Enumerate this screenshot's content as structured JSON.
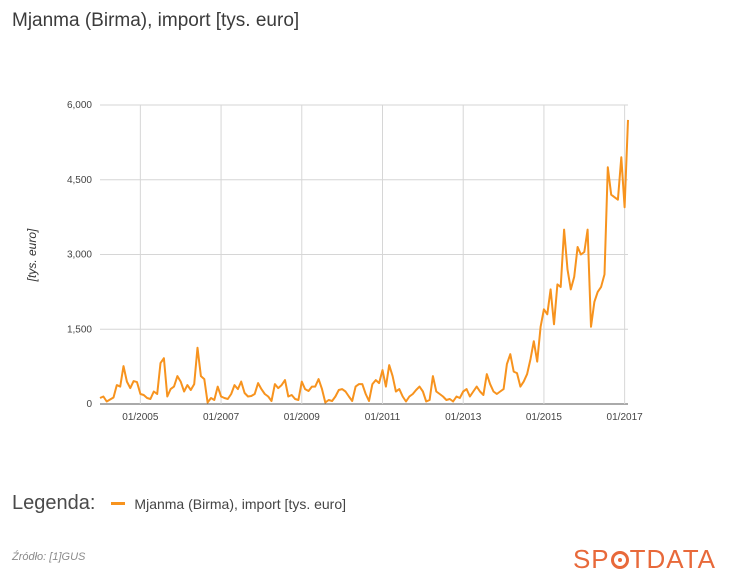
{
  "chart_data": {
    "type": "line",
    "title": "Mjanma (Birma), import [tys. euro]",
    "ylabel": "[tys. euro]",
    "ylim": [
      0,
      6000
    ],
    "yticks": [
      0,
      1500,
      3000,
      4500,
      6000
    ],
    "ytick_labels": [
      "0",
      "1,500",
      "3,000",
      "4,500",
      "6,000"
    ],
    "xlim": [
      "2004-01",
      "2017-02"
    ],
    "xticks": [
      "2005-01",
      "2007-01",
      "2009-01",
      "2011-01",
      "2013-01",
      "2015-01",
      "2017-01"
    ],
    "xtick_labels": [
      "01/2005",
      "01/2007",
      "01/2009",
      "01/2011",
      "01/2013",
      "01/2015",
      "01/2017"
    ],
    "grid": true,
    "color": "#f7931e",
    "series": [
      {
        "name": "Mjanma (Birma), import [tys. euro]",
        "start": "2004-01",
        "values": [
          120,
          150,
          50,
          90,
          130,
          380,
          350,
          760,
          450,
          320,
          460,
          440,
          200,
          180,
          120,
          100,
          250,
          200,
          820,
          920,
          150,
          300,
          350,
          560,
          450,
          250,
          380,
          280,
          400,
          1130,
          560,
          500,
          30,
          120,
          80,
          350,
          150,
          120,
          100,
          200,
          380,
          300,
          450,
          220,
          150,
          160,
          200,
          420,
          300,
          200,
          150,
          60,
          400,
          320,
          380,
          480,
          150,
          180,
          100,
          80,
          450,
          300,
          260,
          350,
          350,
          500,
          300,
          30,
          80,
          60,
          150,
          280,
          300,
          250,
          150,
          60,
          350,
          400,
          400,
          200,
          60,
          400,
          480,
          420,
          680,
          350,
          780,
          560,
          250,
          300,
          150,
          50,
          150,
          200,
          280,
          350,
          250,
          50,
          80,
          560,
          250,
          200,
          150,
          80,
          100,
          50,
          150,
          120,
          250,
          300,
          150,
          250,
          350,
          250,
          180,
          600,
          400,
          250,
          200,
          250,
          300,
          800,
          1000,
          650,
          620,
          350,
          450,
          600,
          900,
          1260,
          850,
          1550,
          1900,
          1800,
          2300,
          1600,
          2400,
          2350,
          3500,
          2700,
          2300,
          2550,
          3150,
          3000,
          3050,
          3500,
          1550,
          2050,
          2250,
          2350,
          2600,
          4750,
          4200,
          4150,
          4100,
          4950,
          3950,
          5700
        ]
      }
    ]
  },
  "legend": {
    "title": "Legenda:",
    "label": "Mjanma (Birma), import [tys. euro]"
  },
  "footer": {
    "source": "Źródło: [1]GUS",
    "brand_left": "SP",
    "brand_right": "TDATA"
  }
}
